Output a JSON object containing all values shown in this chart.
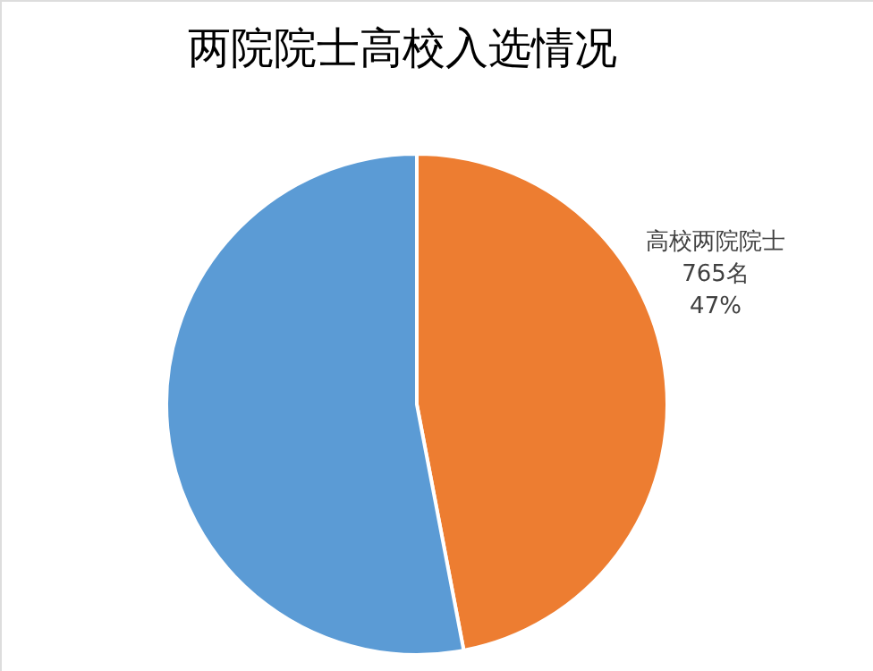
{
  "chart_data": {
    "type": "pie",
    "title": "两院院士高校入选情况",
    "categories": [
      "高校两院院士",
      null
    ],
    "values": [
      47,
      53
    ],
    "colors": [
      "#ed7d31",
      "#5b9bd5"
    ],
    "value_labels": [
      "47%",
      null
    ],
    "annotations": [
      "765名"
    ]
  }
}
